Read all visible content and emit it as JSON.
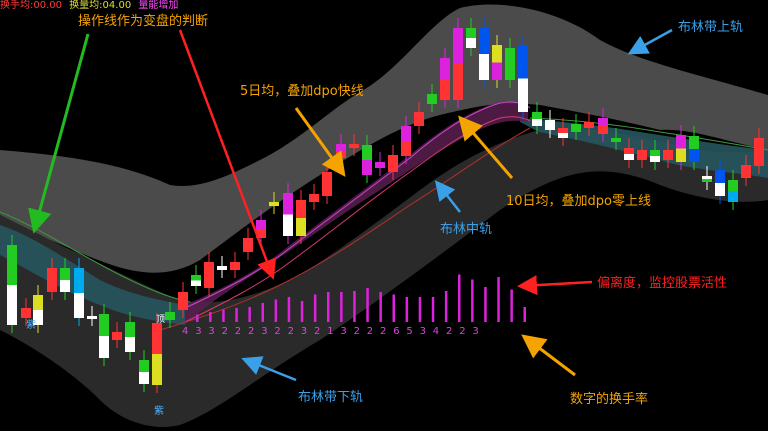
{
  "colors": {
    "background": "#000000",
    "upper_band_fill": "#4a4a4a",
    "lower_band_fill": "#2c2c2c",
    "channel_teal": "#2a5e66",
    "channel_purple": "#5a1f4e",
    "bar_magenta": "#dd22dd",
    "annotation_orange": "#f5a300",
    "annotation_blue": "#3aa0e8",
    "annotation_red": "#ff2020",
    "arrow_green": "#22bb22"
  },
  "status_bar": {
    "segments": [
      {
        "text": "换手均:00.00",
        "color": "#ff3b3b"
      },
      {
        "text": "换量均:04.00",
        "color": "#dddd33"
      },
      {
        "text": "量能增加",
        "color": "#ff44ff"
      }
    ]
  },
  "annotations": {
    "operation_line": "操作线作为变盘的判断",
    "boll_upper": "布林带上轨",
    "ma5": "5日均，叠加dpo快线",
    "ma10": "10日均，叠加dpo零上线",
    "boll_middle": "布林中轨",
    "deviation": "偏离度，监控股票活性",
    "boll_lower": "布林带下轨",
    "turnover": "数字的换手率"
  },
  "chart_labels": {
    "bottom_marker": "紫",
    "left_marker": "紫",
    "mid_marker": "顶"
  },
  "turnover_digits": [
    "4",
    "3",
    "3",
    "2",
    "2",
    "2",
    "3",
    "2",
    "2",
    "3",
    "2",
    "1",
    "3",
    "2",
    "2",
    "2",
    "6",
    "5",
    "3",
    "4",
    "2",
    "2",
    "3"
  ],
  "deviation_bar_levels": [
    0.15,
    0.2,
    0.25,
    0.28,
    0.3,
    0.38,
    0.45,
    0.5,
    0.42,
    0.55,
    0.6,
    0.6,
    0.62,
    0.68,
    0.6,
    0.55,
    0.5,
    0.5,
    0.5,
    0.62,
    0.95,
    0.85,
    0.7,
    0.9,
    0.65,
    0.3
  ]
}
